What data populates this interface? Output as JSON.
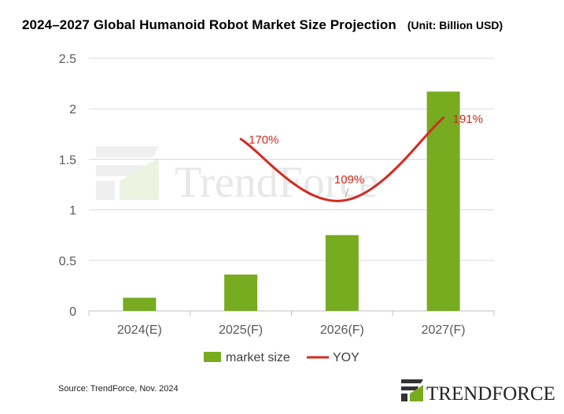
{
  "chart_data": {
    "type": "bar",
    "title": "2024–2027 Global Humanoid  Robot Market Size Projection",
    "unit": "(Unit: Billion USD)",
    "categories": [
      "2024(E)",
      "2025(F)",
      "2026(F)",
      "2027(F)"
    ],
    "series": [
      {
        "name": "market size",
        "type": "bar",
        "color": "#77ab20",
        "values": [
          0.13,
          0.36,
          0.75,
          2.17
        ]
      },
      {
        "name": "YOY",
        "type": "line",
        "color": "#d42a1f",
        "values": [
          null,
          1.7,
          1.09,
          1.91
        ],
        "data_labels": [
          "",
          "170%",
          "109%",
          "191%"
        ],
        "smooth": true
      }
    ],
    "ylim": [
      0,
      2.5
    ],
    "yticks": [
      "0",
      "0.5",
      "1",
      "1.5",
      "2",
      "2.5"
    ],
    "ytick_values": [
      0,
      0.5,
      1,
      1.5,
      2,
      2.5
    ],
    "grid": true,
    "legend_placement": "bottom"
  },
  "watermark": "TrendForce",
  "source": "Source: TrendForce, Nov. 2024",
  "logo_text": "TRENDFORCE"
}
